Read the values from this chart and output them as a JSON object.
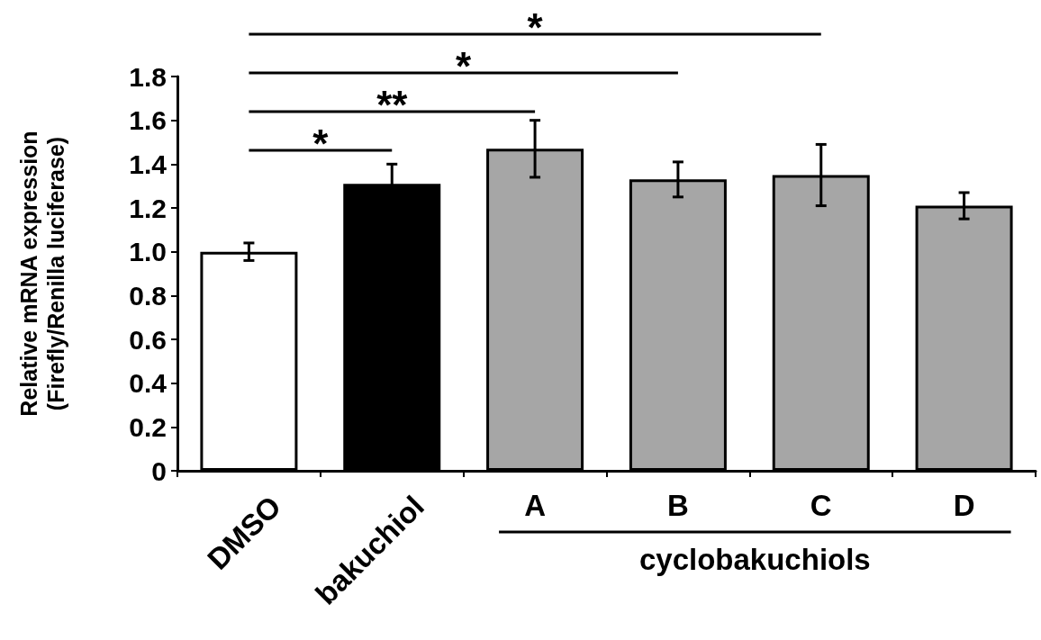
{
  "chart_data": {
    "type": "bar",
    "ylabel": "Relative mRNA expression\n(Firefly/Renilla luciferase)",
    "categories": [
      "DMSO",
      "bakuchiol",
      "A",
      "B",
      "C",
      "D"
    ],
    "values": [
      1.0,
      1.31,
      1.47,
      1.33,
      1.35,
      1.21
    ],
    "errors": [
      0.04,
      0.09,
      0.13,
      0.08,
      0.14,
      0.06
    ],
    "colors": [
      "#ffffff",
      "#000000",
      "#a6a6a6",
      "#a6a6a6",
      "#a6a6a6",
      "#a6a6a6"
    ],
    "ylim": [
      0,
      1.8
    ],
    "yticks": [
      0,
      0.2,
      0.4,
      0.6,
      0.8,
      {
        "value": 1,
        "label": "1.0"
      },
      1.2,
      1.4,
      1.6,
      1.8
    ],
    "grid": false,
    "annotations": [
      "*",
      "**",
      "*",
      "*",
      "cyclobakuchiols"
    ]
  }
}
